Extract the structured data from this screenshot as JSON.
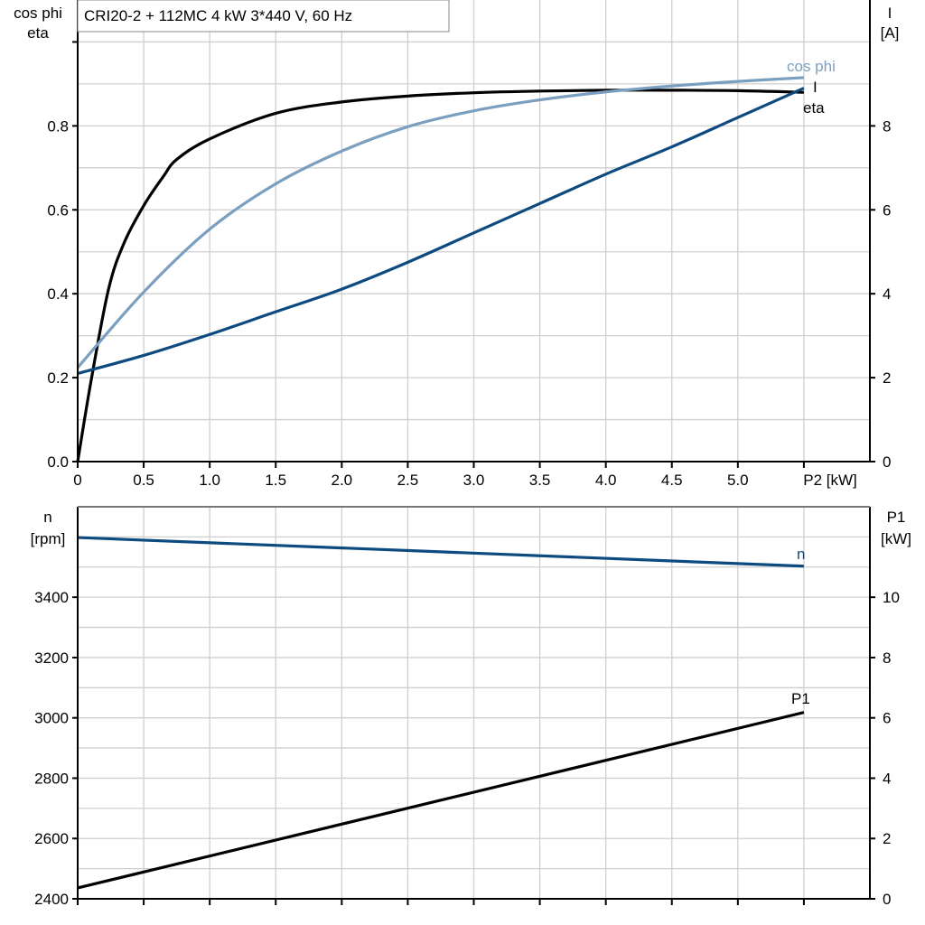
{
  "title": "CRI20-2 + 112MC   4 kW   3*440 V, 60 Hz",
  "colors": {
    "eta": "#000000",
    "cos_phi": "#7a9fc0",
    "I": "#0d4a80",
    "n": "#0d4a80",
    "P1": "#000000",
    "grid": "#cfcfcf"
  },
  "chart_data": [
    {
      "type": "line",
      "xlabel": "P2 [kW]",
      "xlim": [
        0,
        6.0
      ],
      "x_ticks": [
        "0",
        "0.5",
        "1.0",
        "1.5",
        "2.0",
        "2.5",
        "3.0",
        "3.5",
        "4.0",
        "4.5",
        "5.0"
      ],
      "ylabel_left": [
        "cos phi",
        "eta"
      ],
      "ylim_left": [
        0,
        1.1
      ],
      "y_ticks_left": [
        "0.0",
        "0.2",
        "0.4",
        "0.6",
        "0.8"
      ],
      "ylabel_right": [
        "I",
        "[A]"
      ],
      "ylim_right": [
        0,
        11
      ],
      "y_ticks_right": [
        "0",
        "2",
        "4",
        "6",
        "8"
      ],
      "grid": true,
      "series": [
        {
          "name": "eta",
          "axis": "left",
          "x": [
            0,
            0.1,
            0.233,
            0.35,
            0.5,
            0.65,
            0.75,
            1.0,
            1.5,
            2.0,
            2.5,
            3.0,
            3.5,
            4.0,
            4.5,
            5.0,
            5.5
          ],
          "y": [
            0,
            0.19,
            0.41,
            0.52,
            0.61,
            0.68,
            0.72,
            0.769,
            0.83,
            0.857,
            0.871,
            0.879,
            0.883,
            0.885,
            0.885,
            0.884,
            0.88
          ]
        },
        {
          "name": "cos phi",
          "axis": "left",
          "x": [
            0,
            0.5,
            1.0,
            1.5,
            2.0,
            2.5,
            3.0,
            3.5,
            4.0,
            4.5,
            5.0,
            5.5
          ],
          "y": [
            0.224,
            0.404,
            0.554,
            0.662,
            0.74,
            0.798,
            0.836,
            0.862,
            0.881,
            0.895,
            0.906,
            0.915
          ]
        },
        {
          "name": "I",
          "axis": "right",
          "x": [
            0,
            0.5,
            1.0,
            1.5,
            2.0,
            2.5,
            3.0,
            3.5,
            4.0,
            4.5,
            5.0,
            5.5
          ],
          "y": [
            2.1,
            2.53,
            3.03,
            3.57,
            4.11,
            4.75,
            5.45,
            6.15,
            6.85,
            7.5,
            8.2,
            8.9
          ]
        }
      ]
    },
    {
      "type": "line",
      "xlim": [
        0,
        6.0
      ],
      "ylabel_left": [
        "n",
        "[rpm]"
      ],
      "ylim_left": [
        2400,
        3700
      ],
      "y_ticks_left": [
        "2400",
        "2600",
        "2800",
        "3000",
        "3200",
        "3400"
      ],
      "ylabel_right": [
        "P1",
        "[kW]"
      ],
      "ylim_right": [
        0,
        13
      ],
      "y_ticks_right": [
        "0",
        "2",
        "4",
        "6",
        "8",
        "10"
      ],
      "grid": true,
      "series": [
        {
          "name": "n",
          "axis": "left",
          "x": [
            0,
            5.5
          ],
          "y": [
            3598,
            3503
          ]
        },
        {
          "name": "P1",
          "axis": "right",
          "x": [
            0,
            5.5
          ],
          "y": [
            0.36,
            6.18
          ]
        }
      ]
    }
  ]
}
